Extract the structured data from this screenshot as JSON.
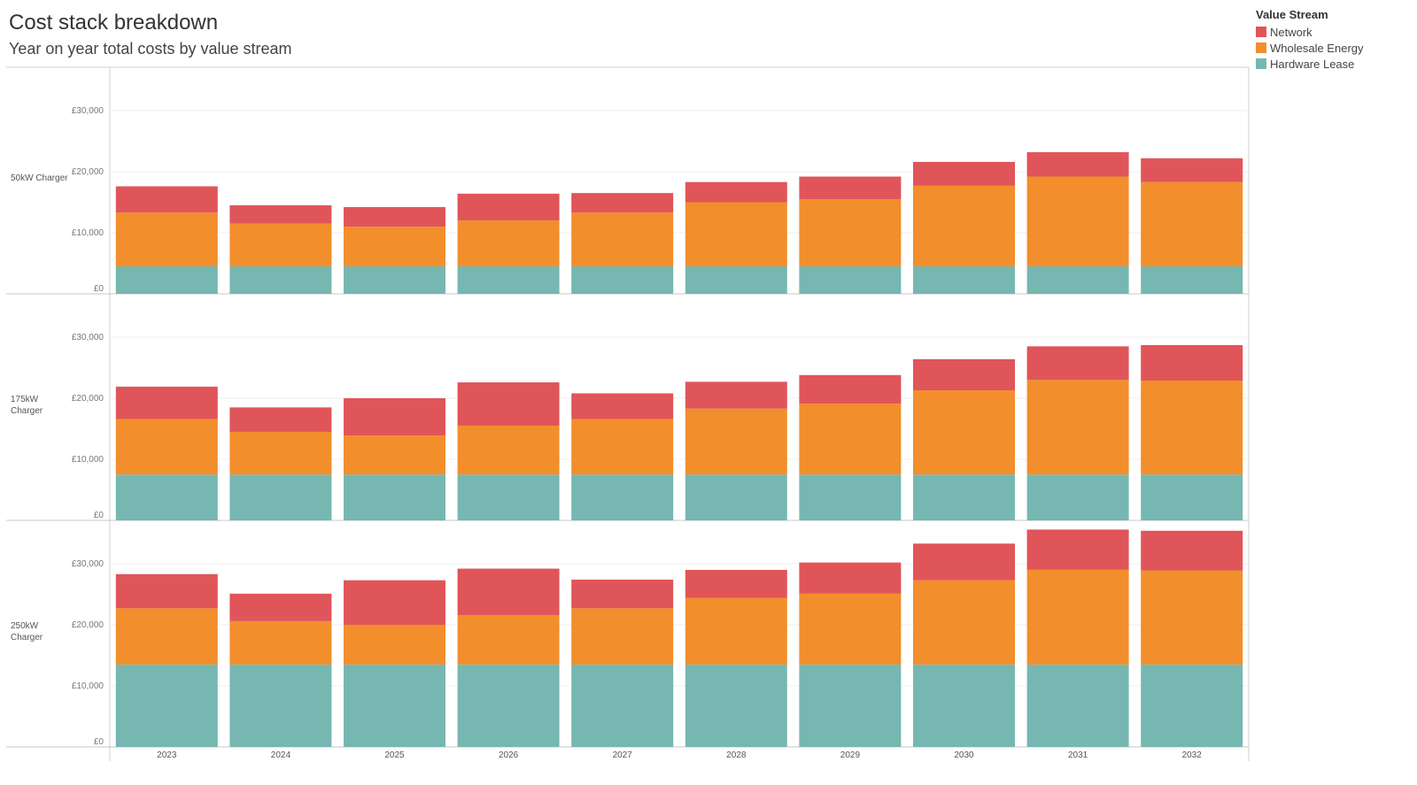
{
  "header": {
    "title": "Cost stack breakdown",
    "subtitle": "Year on year total costs by value stream"
  },
  "legend": {
    "title": "Value Stream",
    "items": [
      {
        "label": "Network",
        "color": "#e0555a"
      },
      {
        "label": "Wholesale Energy",
        "color": "#f28e2b"
      },
      {
        "label": "Hardware Lease",
        "color": "#76b7b2"
      }
    ]
  },
  "chart_data": {
    "type": "bar",
    "stacked": true,
    "title": "Cost stack breakdown",
    "subtitle": "Year on year total costs by value stream",
    "categories": [
      "2023",
      "2024",
      "2025",
      "2026",
      "2027",
      "2028",
      "2029",
      "2030",
      "2031",
      "2032"
    ],
    "y_ticks": [
      "£0",
      "£10,000",
      "£20,000",
      "£30,000"
    ],
    "ylim": [
      0,
      37000
    ],
    "legend_title": "Value Stream",
    "legend_position": "top-right",
    "grid": true,
    "stack_order": [
      "Hardware Lease",
      "Wholesale Energy",
      "Network"
    ],
    "colors": {
      "Network": "#e0555a",
      "Wholesale Energy": "#f28e2b",
      "Hardware Lease": "#76b7b2"
    },
    "panels": [
      {
        "label_lines": [
          "50kW Charger"
        ],
        "series": [
          {
            "name": "Hardware Lease",
            "values": [
              4500,
              4500,
              4500,
              4500,
              4500,
              4500,
              4500,
              4500,
              4500,
              4500
            ]
          },
          {
            "name": "Wholesale Energy",
            "values": [
              8800,
              7000,
              6500,
              7500,
              8800,
              10500,
              11000,
              13200,
              14700,
              13800
            ]
          },
          {
            "name": "Network",
            "values": [
              4300,
              3000,
              3200,
              4400,
              3200,
              3300,
              3700,
              3900,
              4000,
              3900
            ]
          }
        ]
      },
      {
        "label_lines": [
          "175kW",
          "Charger"
        ],
        "series": [
          {
            "name": "Hardware Lease",
            "values": [
              7500,
              7500,
              7500,
              7500,
              7500,
              7500,
              7500,
              7500,
              7500,
              7500
            ]
          },
          {
            "name": "Wholesale Energy",
            "values": [
              9100,
              7000,
              6400,
              8000,
              9100,
              10800,
              11600,
              13800,
              15500,
              15400
            ]
          },
          {
            "name": "Network",
            "values": [
              5300,
              4000,
              6100,
              7100,
              4200,
              4400,
              4700,
              5100,
              5500,
              5800
            ]
          }
        ]
      },
      {
        "label_lines": [
          "250kW",
          "Charger"
        ],
        "series": [
          {
            "name": "Hardware Lease",
            "values": [
              13500,
              13500,
              13500,
              13500,
              13500,
              13500,
              13500,
              13500,
              13500,
              13500
            ]
          },
          {
            "name": "Wholesale Energy",
            "values": [
              9200,
              7100,
              6500,
              8100,
              9200,
              10900,
              11600,
              13800,
              15500,
              15400
            ]
          },
          {
            "name": "Network",
            "values": [
              5600,
              4500,
              7300,
              7600,
              4700,
              4600,
              5100,
              6000,
              6600,
              6500
            ]
          }
        ]
      }
    ]
  }
}
